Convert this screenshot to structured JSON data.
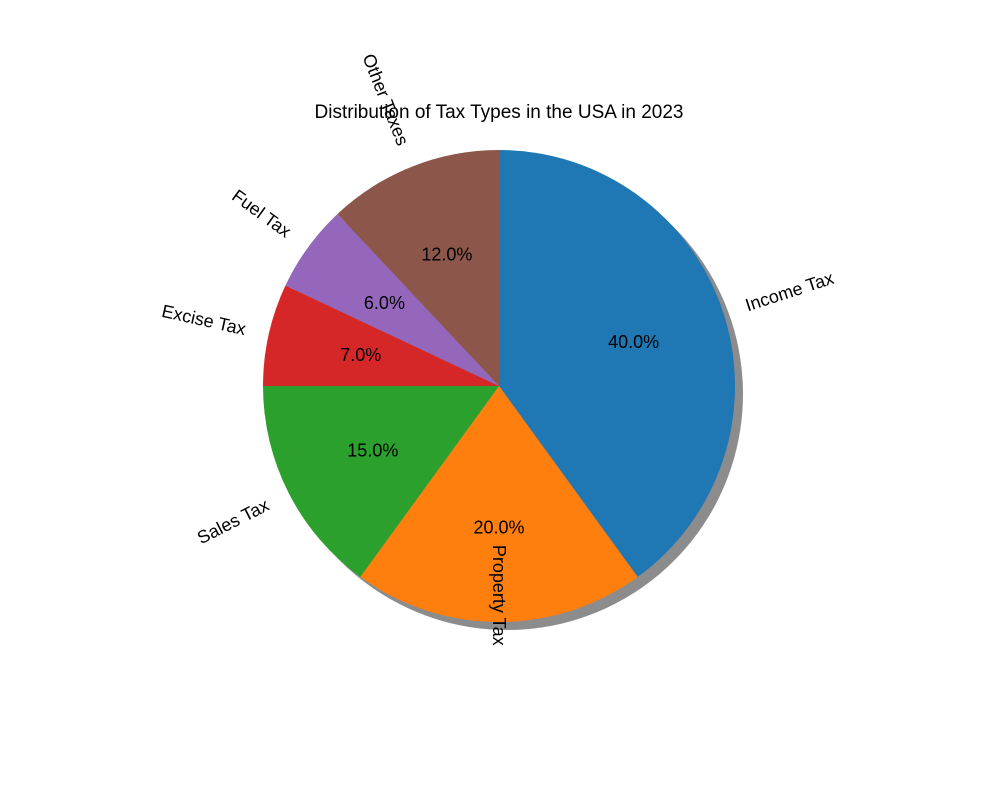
{
  "chart_data": {
    "type": "pie",
    "title": "Distribution of Tax Types in the USA in 2023",
    "categories": [
      "Income Tax",
      "Property Tax",
      "Sales Tax",
      "Excise Tax",
      "Fuel Tax",
      "Other Taxes"
    ],
    "values": [
      40.0,
      20.0,
      15.0,
      7.0,
      6.0,
      12.0
    ],
    "value_labels": [
      "40.0%",
      "20.0%",
      "15.0%",
      "7.0%",
      "6.0%",
      "12.0%"
    ],
    "colors": [
      "#1f77b4",
      "#ff7f0e",
      "#2ca02c",
      "#d62728",
      "#9467bd",
      "#8c564b"
    ],
    "start_angle_deg": 90,
    "direction": "clockwise",
    "shadow": true,
    "rotated_labels": true
  }
}
